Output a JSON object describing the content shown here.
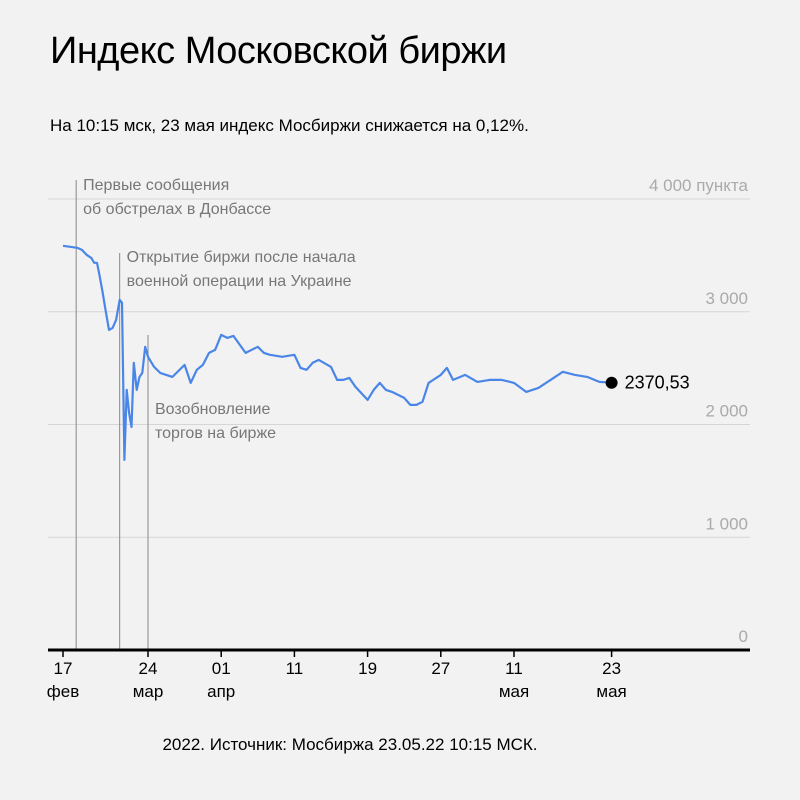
{
  "title": "Индекс Московской биржи",
  "subtitle": "На 10:15 мск, 23 мая индекс Мосбиржи снижается на 0,12%.",
  "footer": "2022. Источник: Мосбиржа 23.05.22 10:15 МСК.",
  "chart_data": {
    "type": "line",
    "title": "Индекс Московской биржи",
    "ylim": [
      0,
      4000
    ],
    "grid": true,
    "y_ticks": [
      {
        "value": 0,
        "label": "0"
      },
      {
        "value": 1000,
        "label": "1 000"
      },
      {
        "value": 2000,
        "label": "2 000"
      },
      {
        "value": 3000,
        "label": "3 000"
      },
      {
        "value": 4000,
        "label": "4 000 пункта"
      }
    ],
    "x_ticks": [
      {
        "date": "2022-02-17",
        "day": "17",
        "month": "фев"
      },
      {
        "date": "2022-03-24",
        "day": "24",
        "month": "мар"
      },
      {
        "date": "2022-04-01",
        "day": "01",
        "month": "апр"
      },
      {
        "date": "2022-04-11",
        "day": "11",
        "month": ""
      },
      {
        "date": "2022-04-19",
        "day": "19",
        "month": ""
      },
      {
        "date": "2022-04-27",
        "day": "27",
        "month": ""
      },
      {
        "date": "2022-05-11",
        "day": "11",
        "month": "мая"
      },
      {
        "date": "2022-05-23",
        "day": "23",
        "month": "мая"
      }
    ],
    "line_color": "#4a86e8",
    "series": [
      {
        "date": "2022-02-17",
        "values": [
          3585
        ]
      },
      {
        "date": "2022-02-18",
        "values": [
          3567,
          3549,
          3505
        ]
      },
      {
        "date": "2022-02-21",
        "values": [
          3478,
          3434,
          3434,
          3310,
          3168
        ]
      },
      {
        "date": "2022-02-22",
        "values": [
          3017,
          2839,
          2857,
          2928
        ]
      },
      {
        "date": "2022-02-24",
        "values": [
          3106,
          3079,
          1686,
          2307,
          2103,
          1979
        ]
      },
      {
        "date": "2022-02-25",
        "values": [
          2547,
          2307,
          2422,
          2458,
          2689
        ]
      },
      {
        "date": "2022-03-24",
        "values": [
          2600,
          2511
        ]
      },
      {
        "date": "2022-03-25",
        "values": [
          2458
        ]
      },
      {
        "date": "2022-03-28",
        "values": [
          2422
        ]
      },
      {
        "date": "2022-03-29",
        "values": [
          2529,
          2369
        ]
      },
      {
        "date": "2022-03-30",
        "values": [
          2485,
          2529
        ]
      },
      {
        "date": "2022-03-31",
        "values": [
          2635,
          2662
        ]
      },
      {
        "date": "2022-04-01",
        "values": [
          2795,
          2768
        ]
      },
      {
        "date": "2022-04-04",
        "values": [
          2786
        ]
      },
      {
        "date": "2022-04-05",
        "values": [
          2635
        ]
      },
      {
        "date": "2022-04-06",
        "values": [
          2689,
          2635
        ]
      },
      {
        "date": "2022-04-07",
        "values": [
          2618
        ]
      },
      {
        "date": "2022-04-08",
        "values": [
          2600
        ]
      },
      {
        "date": "2022-04-11",
        "values": [
          2618,
          2502
        ]
      },
      {
        "date": "2022-04-12",
        "values": [
          2485,
          2547
        ]
      },
      {
        "date": "2022-04-13",
        "values": [
          2573
        ]
      },
      {
        "date": "2022-04-14",
        "values": [
          2511,
          2396
        ]
      },
      {
        "date": "2022-04-15",
        "values": [
          2396,
          2413
        ]
      },
      {
        "date": "2022-04-18",
        "values": [
          2334
        ]
      },
      {
        "date": "2022-04-19",
        "values": [
          2218,
          2307
        ]
      },
      {
        "date": "2022-04-20",
        "values": [
          2369,
          2307
        ]
      },
      {
        "date": "2022-04-21",
        "values": [
          2289
        ]
      },
      {
        "date": "2022-04-22",
        "values": [
          2236,
          2174
        ]
      },
      {
        "date": "2022-04-25",
        "values": [
          2174,
          2201
        ]
      },
      {
        "date": "2022-04-26",
        "values": [
          2369
        ]
      },
      {
        "date": "2022-04-27",
        "values": [
          2440,
          2502
        ]
      },
      {
        "date": "2022-04-28",
        "values": [
          2396
        ]
      },
      {
        "date": "2022-04-29",
        "values": [
          2440
        ]
      },
      {
        "date": "2022-05-04",
        "values": [
          2378
        ]
      },
      {
        "date": "2022-05-05",
        "values": [
          2396
        ]
      },
      {
        "date": "2022-05-06",
        "values": [
          2396
        ]
      },
      {
        "date": "2022-05-11",
        "values": [
          2369
        ]
      },
      {
        "date": "2022-05-12",
        "values": [
          2289
        ]
      },
      {
        "date": "2022-05-13",
        "values": [
          2325
        ]
      },
      {
        "date": "2022-05-16",
        "values": [
          2396
        ]
      },
      {
        "date": "2022-05-17",
        "values": [
          2467
        ]
      },
      {
        "date": "2022-05-18",
        "values": [
          2440
        ]
      },
      {
        "date": "2022-05-19",
        "values": [
          2422
        ]
      },
      {
        "date": "2022-05-20",
        "values": [
          2378
        ]
      },
      {
        "date": "2022-05-23",
        "values": [
          2370.53
        ]
      }
    ],
    "last_value": 2370.53,
    "last_label": "2370,53",
    "annotations": [
      {
        "date": "2022-02-18",
        "lines": [
          "Первые сообщения",
          "об обстрелах в Донбассе"
        ]
      },
      {
        "date": "2022-02-24",
        "lines": [
          "Открытие биржи после начала",
          "военной операции на Украине"
        ]
      },
      {
        "date": "2022-03-24",
        "lines": [
          "Возобновление",
          "торгов на бирже"
        ]
      }
    ]
  }
}
